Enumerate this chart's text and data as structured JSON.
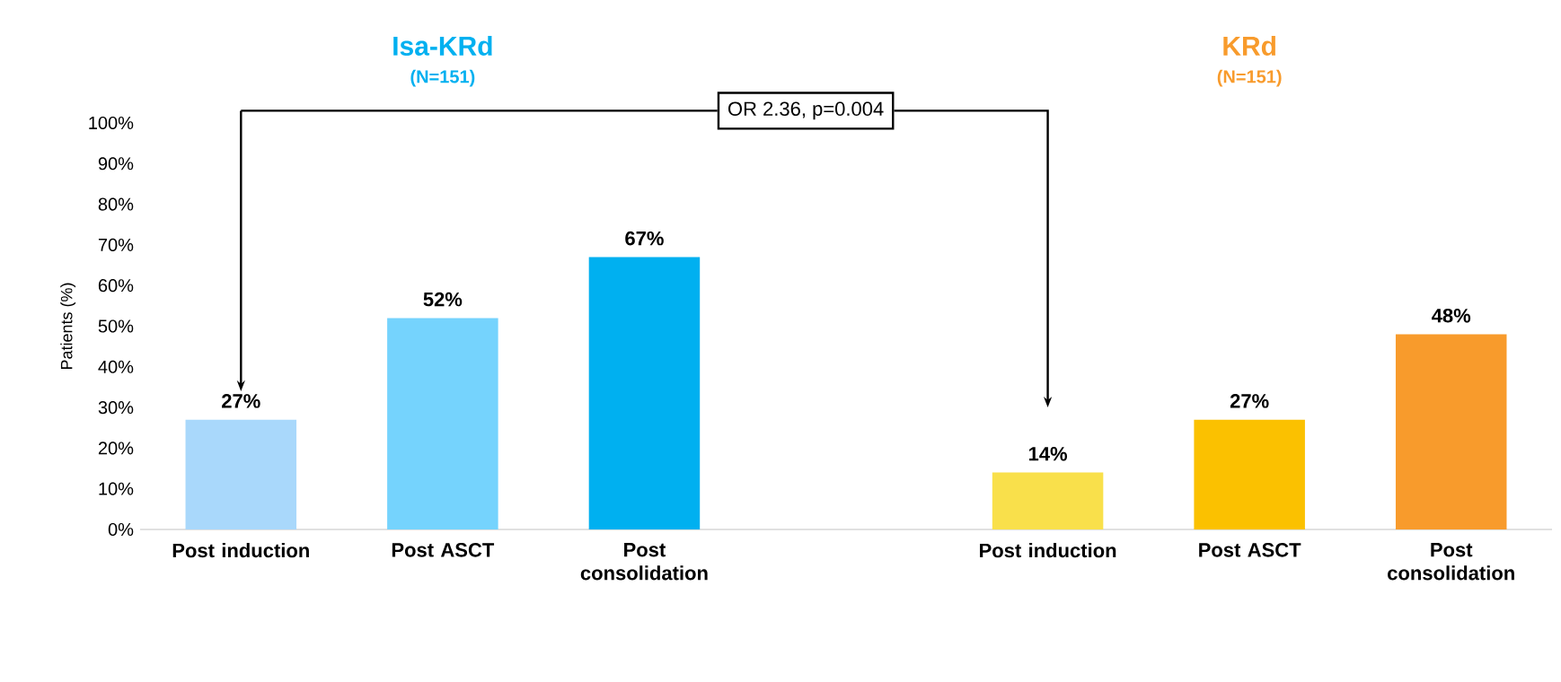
{
  "chart_data": {
    "type": "bar",
    "ylabel": "Patients (%)",
    "categories": [
      "Post induction",
      "Post ASCT",
      "Post consolidation",
      null,
      "Post induction",
      "Post ASCT",
      "Post consolidation"
    ],
    "values": [
      27,
      52,
      67,
      null,
      14,
      27,
      48
    ],
    "value_labels": [
      "27%",
      "52%",
      "67%",
      null,
      "14%",
      "27%",
      "48%"
    ],
    "colors": [
      "#a9d8fb",
      "#75d3fd",
      "#00b0f0",
      "#ffffff",
      "#f9e04b",
      "#fbc100",
      "#f89b2c"
    ],
    "ylim": [
      0,
      100
    ],
    "yticks": [
      {
        "value": 0,
        "label": "0%"
      },
      {
        "value": 10,
        "label": "10%"
      },
      {
        "value": 20,
        "label": "20%"
      },
      {
        "value": 30,
        "label": "30%"
      },
      {
        "value": 40,
        "label": "40%"
      },
      {
        "value": 50,
        "label": "50%"
      },
      {
        "value": 60,
        "label": "60%"
      },
      {
        "value": 70,
        "label": "70%"
      },
      {
        "value": 80,
        "label": "80%"
      },
      {
        "value": 90,
        "label": "90%"
      },
      {
        "value": 100,
        "label": "100%"
      }
    ],
    "grid": false,
    "annotations": [
      "Isa-KRd",
      "(N=151)",
      "KRd",
      "(N=151)",
      "OR 2.36, p=0.004"
    ]
  }
}
